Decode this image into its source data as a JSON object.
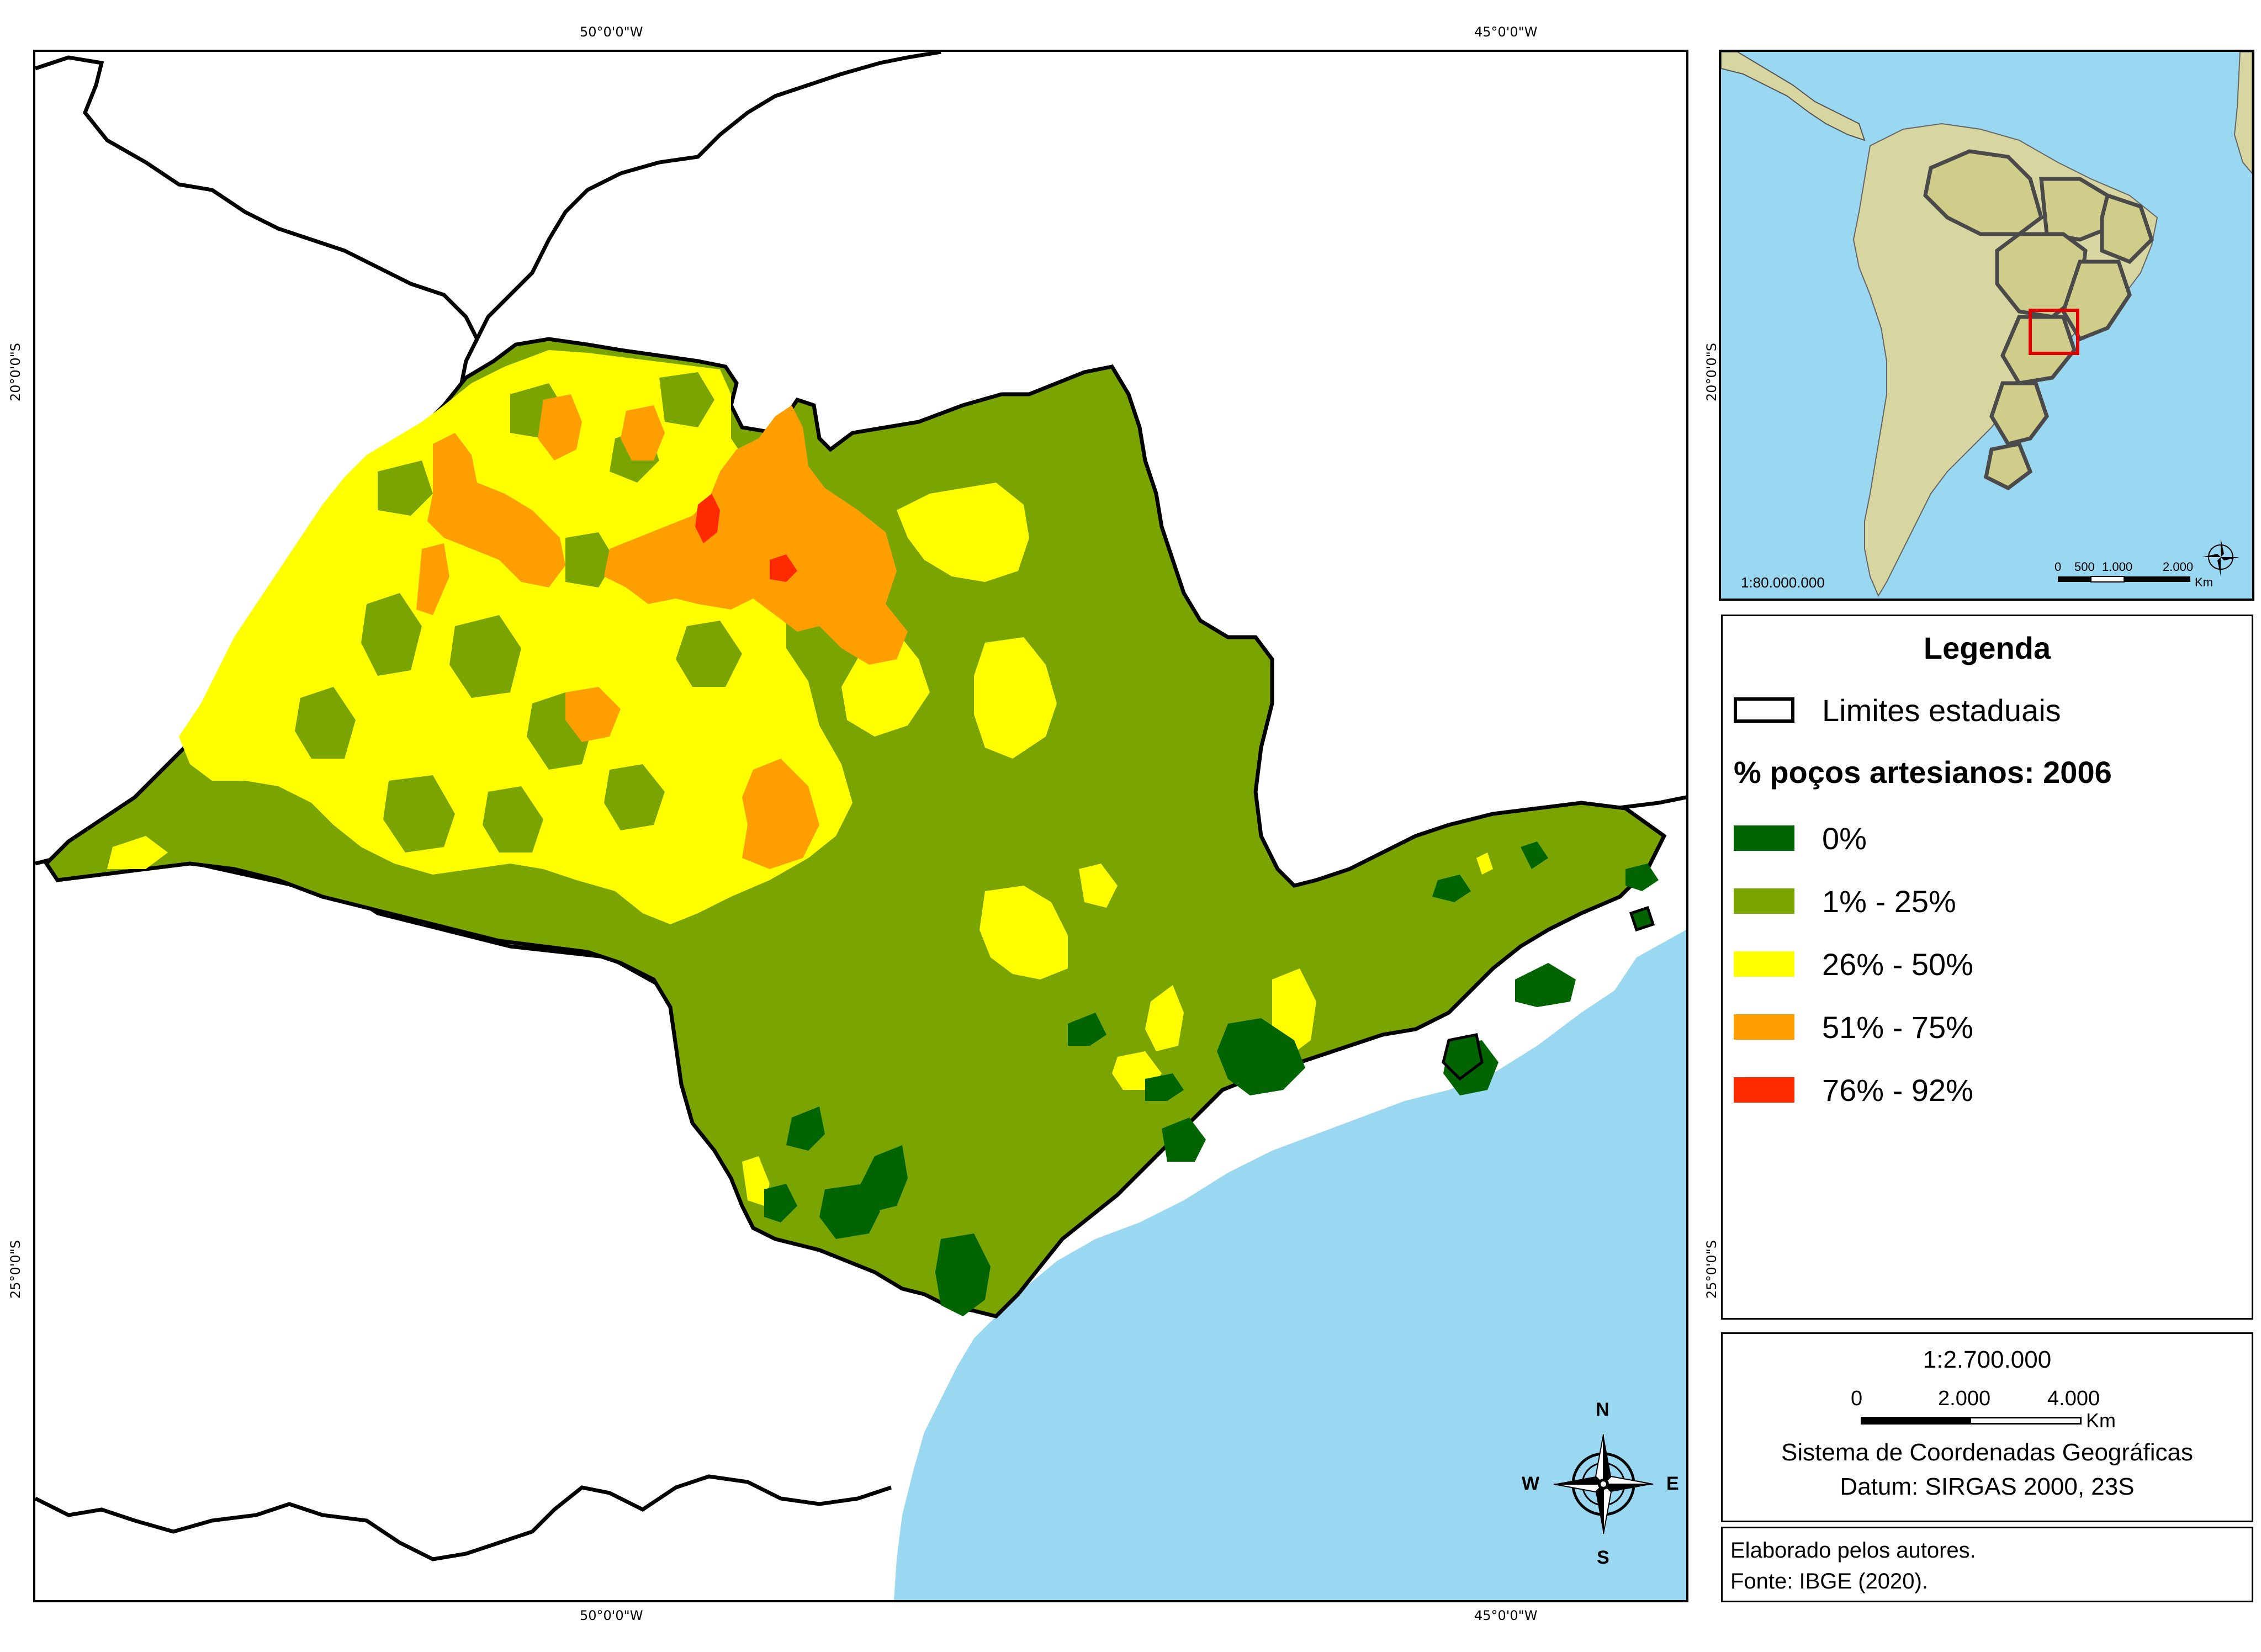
{
  "coords": {
    "top_west_50": "50°0'0\"W",
    "top_west_45": "45°0'0\"W",
    "bottom_west_50": "50°0'0\"W",
    "bottom_west_45": "45°0'0\"W",
    "left_south_20": "20°0'0\"S",
    "left_south_25": "25°0'0\"S",
    "right_south_20": "20°0'0\"S",
    "right_south_25": "25°0'0\"S"
  },
  "compass": {
    "north": "N",
    "south": "S",
    "east": "E",
    "west": "W"
  },
  "inset": {
    "scale_text": "1:80.000.000",
    "scalebar_0": "0",
    "scalebar_500": "500",
    "scalebar_1000": "1.000",
    "scalebar_2000": "2.000",
    "scalebar_unit": "Km"
  },
  "legend": {
    "title": "Legenda",
    "boundary_label": "Limites estaduais",
    "subtitle": "% poços artesianos: 2006",
    "classes": [
      {
        "label": "0%",
        "color": "#006400"
      },
      {
        "label": "1% - 25%",
        "color": "#7aa500"
      },
      {
        "label": "26% - 50%",
        "color": "#ffff00"
      },
      {
        "label": "51% - 75%",
        "color": "#ff9e00"
      },
      {
        "label": "76% - 92%",
        "color": "#ff2a00"
      }
    ]
  },
  "scale": {
    "ratio": "1:2.700.000",
    "bar_0": "0",
    "bar_2000": "2.000",
    "bar_4000": "4.000",
    "unit": "Km",
    "crs": "Sistema de Coordenadas Geográficas",
    "datum": "Datum: SIRGAS 2000, 23S"
  },
  "credits": {
    "line1": "Elaborado pelos autores.",
    "line2": "Fonte: IBGE (2020)."
  },
  "colors": {
    "ocean": "#9ad8f2",
    "land_inset": "#d8d6a0",
    "highlight_box": "#e00000"
  }
}
